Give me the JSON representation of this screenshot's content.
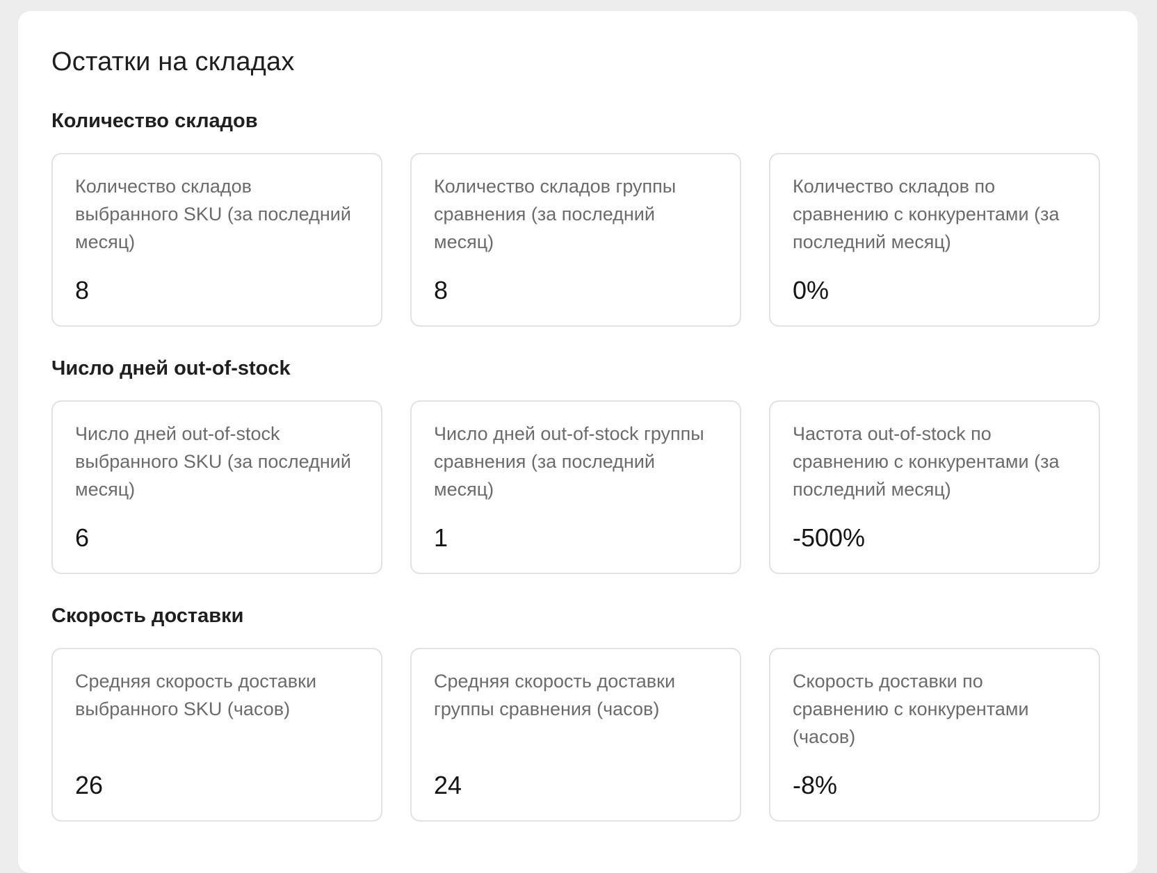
{
  "panel": {
    "title": "Остатки на складах"
  },
  "sections": [
    {
      "title": "Количество складов",
      "cards": [
        {
          "label": "Количество складов выбранного SKU (за последний месяц)",
          "value": "8"
        },
        {
          "label": "Количество складов группы сравнения (за последний месяц)",
          "value": "8"
        },
        {
          "label": "Количество складов по сравнению с конкурентами (за последний месяц)",
          "value": "0%"
        }
      ]
    },
    {
      "title": "Число дней out-of-stock",
      "cards": [
        {
          "label": "Число дней out-of-stock выбранного SKU (за последний месяц)",
          "value": "6"
        },
        {
          "label": "Число дней out-of-stock группы сравнения (за последний месяц)",
          "value": "1"
        },
        {
          "label": "Частота out-of-stock по сравнению с конкурентами (за последний месяц)",
          "value": "-500%"
        }
      ]
    },
    {
      "title": "Скорость доставки",
      "cards": [
        {
          "label": "Средняя скорость доставки выбранного SKU (часов)",
          "value": "26"
        },
        {
          "label": "Средняя скорость доставки группы сравнения (часов)",
          "value": "24"
        },
        {
          "label": "Скорость доставки по сравнению с конкурентами (часов)",
          "value": "-8%"
        }
      ]
    }
  ]
}
